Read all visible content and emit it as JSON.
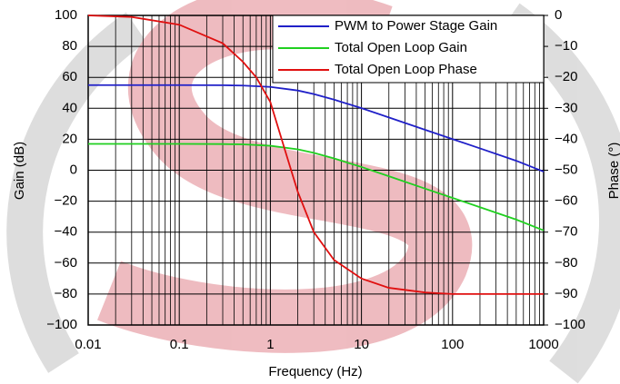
{
  "chart_data": {
    "type": "line",
    "xlabel": "Frequency (Hz)",
    "ylabel": "Gain (dB)",
    "y2label": "Phase (°)",
    "xscale": "log",
    "grid": true,
    "legend": "upper right",
    "xlim": [
      0.01,
      1000
    ],
    "xticks": [
      0.01,
      0.1,
      1,
      10,
      100,
      1000
    ],
    "ylim": [
      -100,
      100
    ],
    "yticks": [
      {
        "value": -100,
        "label": "−100"
      },
      {
        "value": -80,
        "label": "−80"
      },
      {
        "value": -60,
        "label": "−60"
      },
      {
        "value": -40,
        "label": "−40"
      },
      {
        "value": -20,
        "label": "−20"
      },
      0,
      20,
      40,
      60,
      80,
      100
    ],
    "y2lim": [
      -100,
      0
    ],
    "y2ticks": [
      {
        "value": -100,
        "label": "−100"
      },
      {
        "value": -90,
        "label": "−90"
      },
      {
        "value": -80,
        "label": "−80"
      },
      {
        "value": -70,
        "label": "−70"
      },
      {
        "value": -60,
        "label": "−60"
      },
      {
        "value": -50,
        "label": "−50"
      },
      {
        "value": -40,
        "label": "−40"
      },
      {
        "value": -30,
        "label": "−30"
      },
      {
        "value": -20,
        "label": "−20"
      },
      {
        "value": -10,
        "label": "−10"
      },
      0
    ],
    "series": [
      {
        "name": "PWM to Power Stage Gain",
        "color": "#2020c8",
        "x": [
          0.01,
          0.1,
          0.3,
          0.5,
          1,
          2,
          3,
          5,
          10,
          20,
          50,
          100,
          200,
          500,
          1000
        ],
        "values": [
          55,
          55,
          54.9,
          54.7,
          53.8,
          51.5,
          49.2,
          45.6,
          40.1,
          34.1,
          26.1,
          20.1,
          14.1,
          6.1,
          -0.9
        ]
      },
      {
        "name": "Total Open Loop Gain",
        "color": "#20d020",
        "x": [
          0.01,
          0.1,
          0.3,
          0.5,
          1,
          2,
          3,
          5,
          10,
          20,
          50,
          100,
          200,
          500,
          1000
        ],
        "values": [
          17,
          17,
          16.9,
          16.7,
          15.8,
          13.5,
          11.2,
          7.6,
          2.1,
          -3.9,
          -11.9,
          -17.9,
          -23.9,
          -31.9,
          -38.9
        ]
      },
      {
        "name": "Total Open Loop Phase",
        "color": "#e01010",
        "axis": "y2",
        "x": [
          0.01,
          0.03,
          0.1,
          0.3,
          0.5,
          0.7,
          1,
          1.5,
          2,
          3,
          5,
          10,
          20,
          50,
          100,
          1000
        ],
        "values": [
          0,
          -0.5,
          -3,
          -9,
          -15,
          -20,
          -28,
          -45,
          -57,
          -70,
          -79,
          -85,
          -88,
          -89.5,
          -90,
          -90
        ]
      }
    ]
  }
}
